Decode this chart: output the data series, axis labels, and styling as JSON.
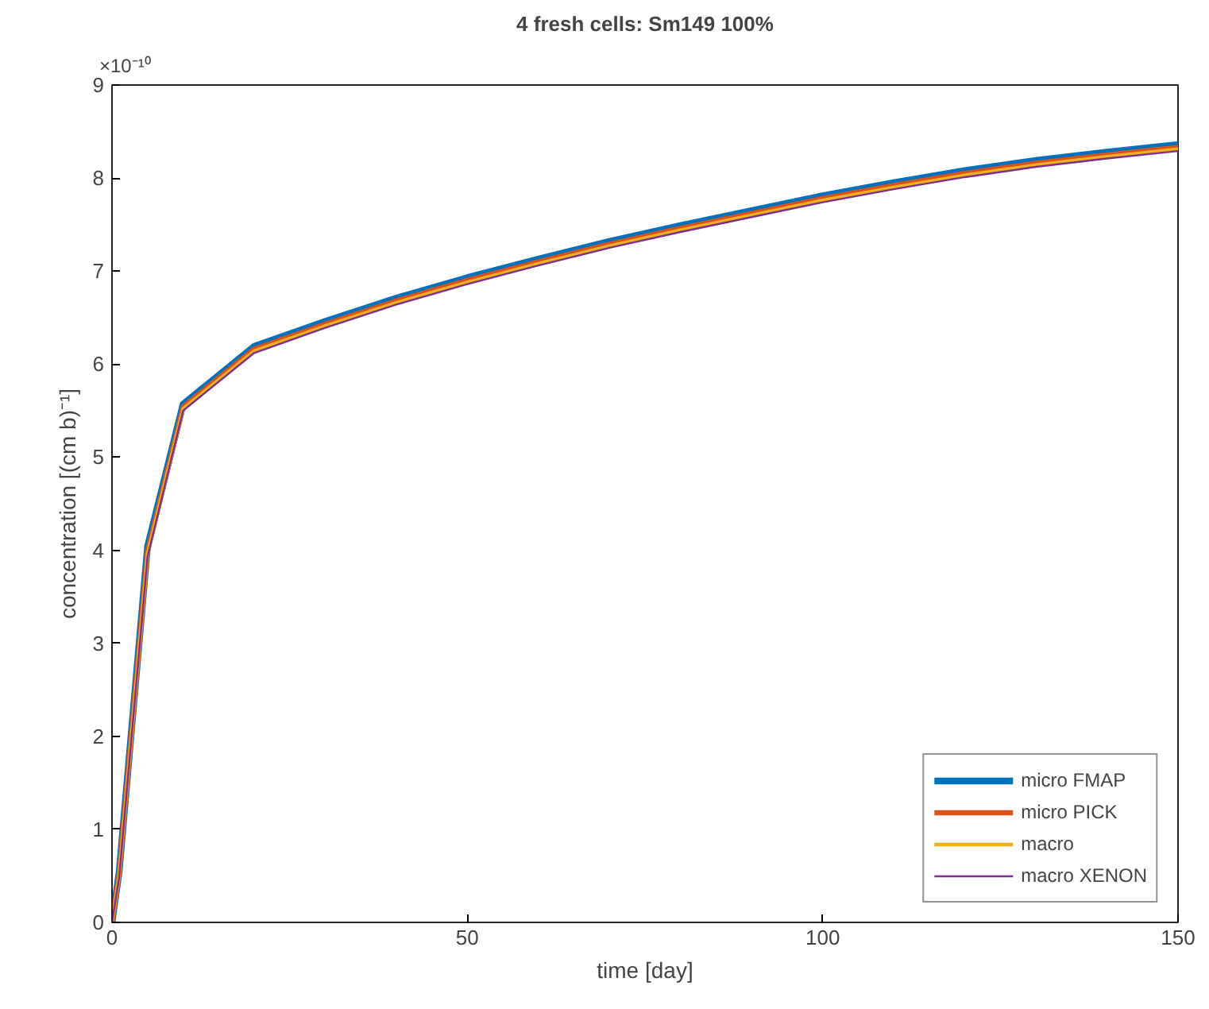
{
  "chart_data": {
    "type": "line",
    "title": "4 fresh cells: Sm149 100%",
    "xlabel": "time [day]",
    "ylabel": "concentration [(cm b)⁻¹]",
    "annotations": [
      "×10⁻¹⁰"
    ],
    "x": [
      0,
      1,
      5,
      10,
      20,
      30,
      40,
      50,
      60,
      70,
      80,
      90,
      100,
      110,
      120,
      130,
      140,
      150
    ],
    "series": [
      {
        "name": "micro FMAP",
        "color": "#0072bd",
        "values": [
          0,
          0.54,
          4.04,
          5.57,
          6.19,
          6.46,
          6.71,
          6.93,
          7.13,
          7.32,
          7.49,
          7.65,
          7.81,
          7.95,
          8.08,
          8.19,
          8.28,
          8.36
        ]
      },
      {
        "name": "micro PICK",
        "color": "#d95319",
        "values": [
          0,
          0.52,
          3.99,
          5.54,
          6.16,
          6.43,
          6.68,
          6.9,
          7.1,
          7.29,
          7.46,
          7.62,
          7.78,
          7.92,
          8.05,
          8.16,
          8.25,
          8.33
        ]
      },
      {
        "name": "macro",
        "color": "#edb120",
        "values": [
          0,
          0.5,
          3.96,
          5.52,
          6.14,
          6.41,
          6.66,
          6.88,
          7.08,
          7.27,
          7.44,
          7.6,
          7.76,
          7.9,
          8.03,
          8.14,
          8.23,
          8.31
        ]
      },
      {
        "name": "macro XENON",
        "color": "#7e2f8e",
        "values": [
          0,
          0.48,
          3.93,
          5.5,
          6.12,
          6.39,
          6.64,
          6.86,
          7.06,
          7.25,
          7.42,
          7.58,
          7.74,
          7.88,
          8.01,
          8.12,
          8.21,
          8.29
        ]
      }
    ],
    "xlim": [
      0,
      150
    ],
    "xticks": [
      0,
      50,
      100,
      150
    ],
    "ylim": [
      0,
      9
    ],
    "yticks": [
      0,
      1,
      2,
      3,
      4,
      5,
      6,
      7,
      8,
      9
    ],
    "grid": false,
    "legend": "bottom right",
    "line_style": "solid",
    "marker": "none"
  }
}
